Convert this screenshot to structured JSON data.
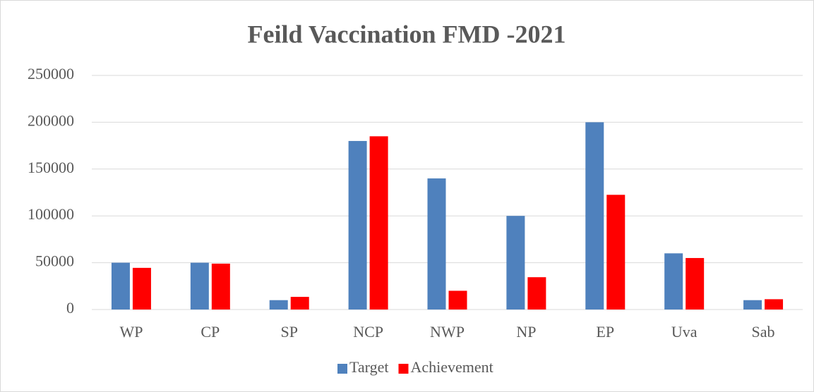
{
  "chart_data": {
    "type": "bar",
    "title": "Feild Vaccination FMD -2021",
    "categories": [
      "WP",
      "CP",
      "SP",
      "NCP",
      "NWP",
      "NP",
      "EP",
      "Uva",
      "Sab"
    ],
    "series": [
      {
        "name": "Target",
        "color": "#4f81bd",
        "values": [
          50000,
          50000,
          10000,
          180000,
          140000,
          100000,
          200000,
          60000,
          10000
        ]
      },
      {
        "name": "Achievement",
        "color": "#ff0000",
        "values": [
          44500,
          49000,
          13500,
          185000,
          20000,
          34500,
          122500,
          55000,
          11000
        ]
      }
    ],
    "ylim": [
      0,
      250000
    ],
    "yticks": [
      0,
      50000,
      100000,
      150000,
      200000,
      250000
    ],
    "grid": true,
    "legend": "bottom"
  }
}
